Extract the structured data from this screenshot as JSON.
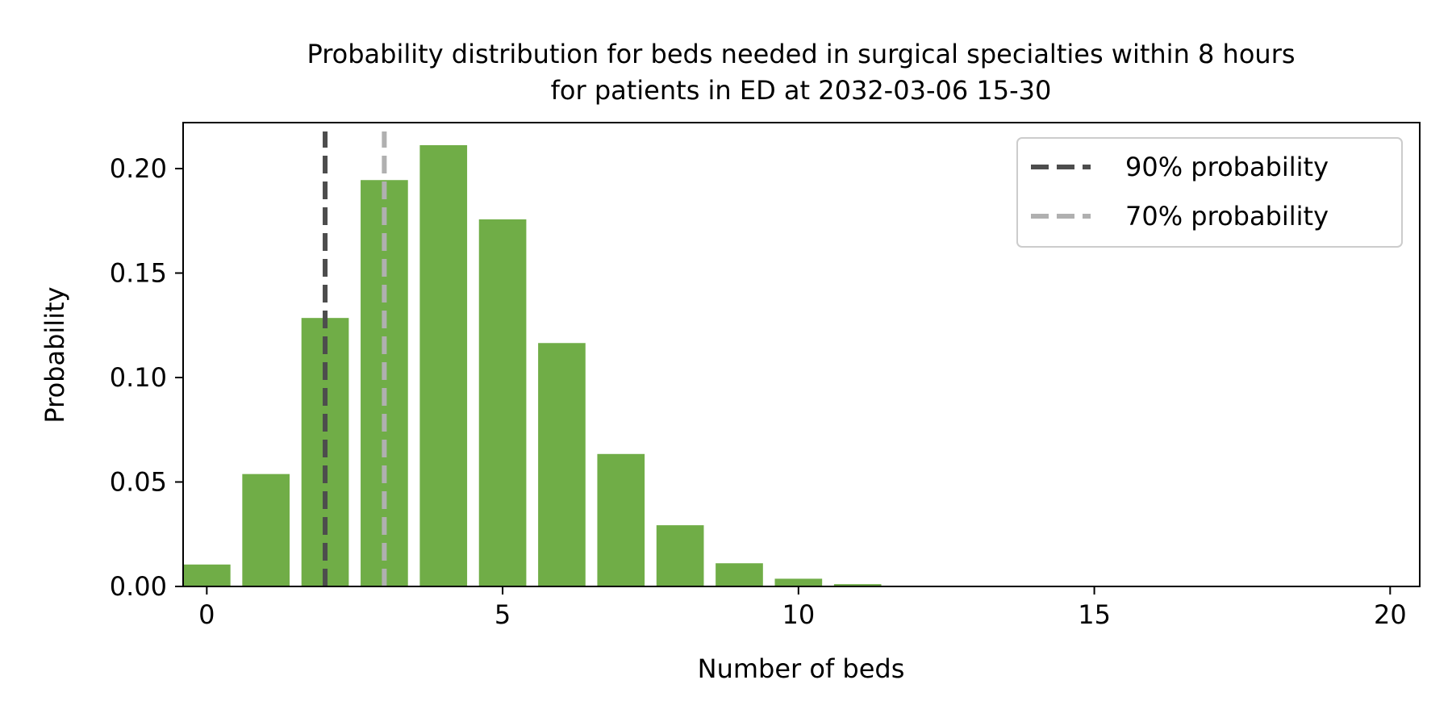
{
  "chart_data": {
    "type": "bar",
    "title_line1": "Probability distribution for beds needed in surgical specialties within 8 hours",
    "title_line2": "for patients in ED at 2032-03-06 15-30",
    "xlabel": "Number of beds",
    "ylabel": "Probability",
    "x": [
      0,
      1,
      2,
      3,
      4,
      5,
      6,
      7,
      8,
      9,
      10,
      11,
      12,
      13,
      14,
      15,
      16,
      17,
      18,
      19,
      20
    ],
    "values": [
      0.0105,
      0.0538,
      0.1285,
      0.1945,
      0.2112,
      0.1757,
      0.1165,
      0.0634,
      0.0293,
      0.0111,
      0.0037,
      0.0011,
      0.0003,
      0.0001,
      0,
      0,
      0,
      0,
      0,
      0,
      0
    ],
    "xlim": [
      -0.4,
      20.5
    ],
    "ylim": [
      0,
      0.222
    ],
    "xticks": [
      0,
      5,
      10,
      15,
      20
    ],
    "xtick_labels": [
      "0",
      "5",
      "10",
      "15",
      "20"
    ],
    "yticks": [
      0,
      0.05,
      0.1,
      0.15,
      0.2
    ],
    "ytick_labels": [
      "0.00",
      "0.05",
      "0.10",
      "0.15",
      "0.20"
    ],
    "bar_color": "#70ad47",
    "vlines": [
      {
        "name": "90% probability",
        "x": 2,
        "color": "#4d4d4d"
      },
      {
        "name": "70% probability",
        "x": 3,
        "color": "#b0b0b0"
      }
    ],
    "legend_position": "top-right",
    "grid": false
  }
}
